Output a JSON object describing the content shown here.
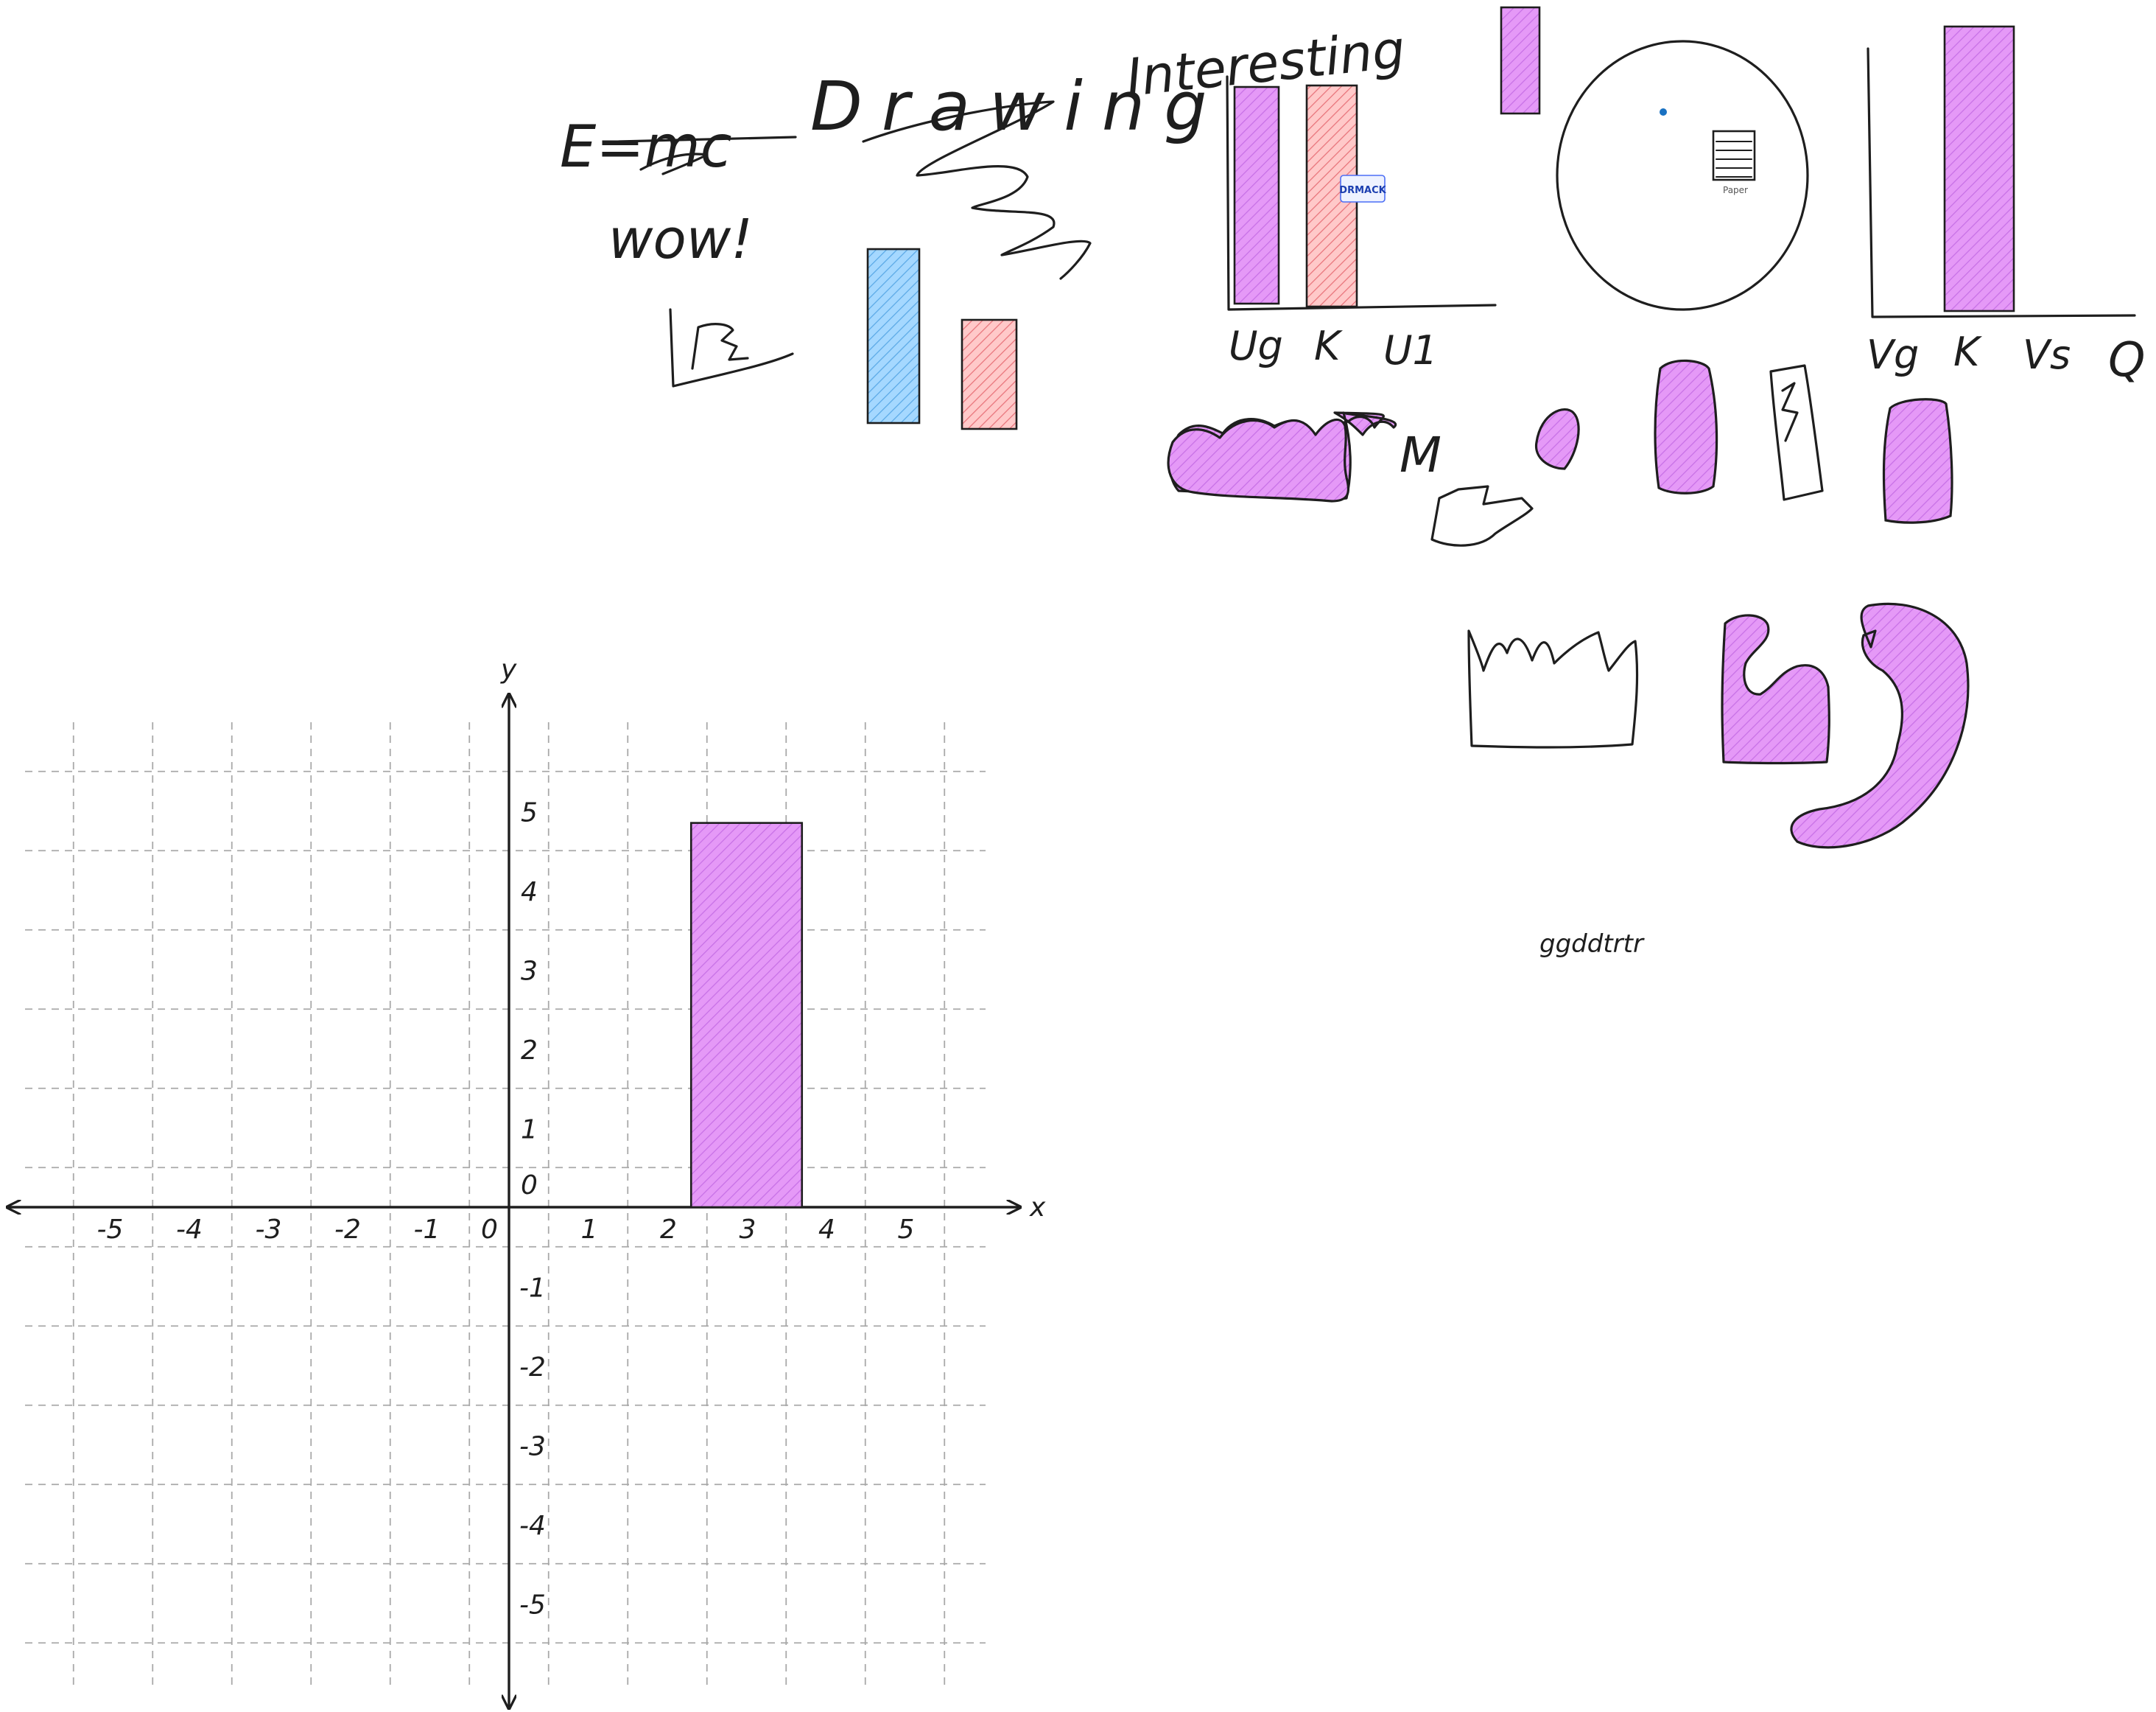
{
  "colors": {
    "ink": "#1e1e1e",
    "violet": "#e599f7",
    "violet_hatch": "#c770e6",
    "blue": "#a5d8ff",
    "blue_hatch": "#5aa9e6",
    "red": "#ffc9c9",
    "red_hatch": "#e8737a",
    "dot": "#1971c2"
  },
  "notes": {
    "formula": "E=mc",
    "drawing": "Drawing",
    "wow": "wow!",
    "interesting": "Interesting",
    "ggddtrtr": "ggddtrtr",
    "paper_label": "Paper",
    "logo_text": "DRMACK"
  },
  "bar_chart_1": {
    "labels": [
      "Ug",
      "K",
      "U1"
    ]
  },
  "bar_chart_2": {
    "labels": [
      "Vg",
      "K",
      "Vs",
      "Q"
    ]
  },
  "chart_data": {
    "type": "bar",
    "xlabel": "x",
    "ylabel": "y",
    "xlim": [
      -6,
      6
    ],
    "ylim": [
      -6,
      6
    ],
    "x_ticks": [
      -5,
      -4,
      -3,
      -2,
      -1,
      0,
      1,
      2,
      3,
      4,
      5
    ],
    "y_ticks": [
      5,
      4,
      3,
      2,
      1,
      0,
      -1,
      -2,
      -3,
      -4,
      -5
    ],
    "grid": true,
    "bars": [
      {
        "x_start": 2.3,
        "x_end": 3.7,
        "y_start": 0,
        "y_end": 4.85
      }
    ]
  }
}
